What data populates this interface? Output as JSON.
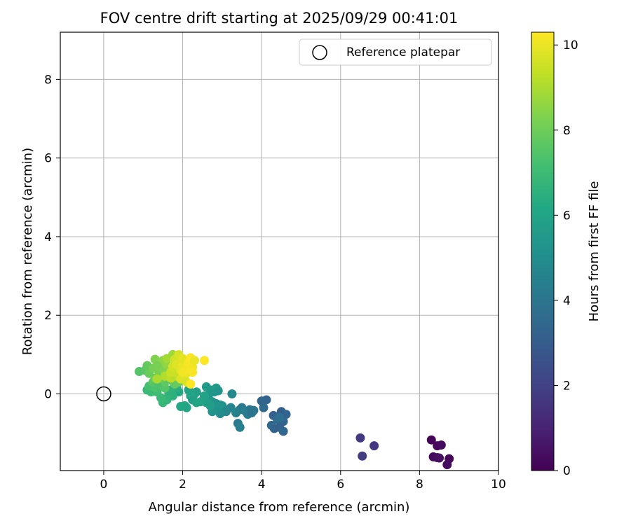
{
  "chart_data": {
    "type": "scatter",
    "title": "FOV centre drift starting at 2025/09/29 00:41:01",
    "xlabel": "Angular distance from reference (arcmin)",
    "ylabel": "Rotation from reference (arcmin)",
    "xlim": [
      -1.1,
      10
    ],
    "ylim": [
      -1.95,
      9.2
    ],
    "xticks": [
      0,
      2,
      4,
      6,
      8,
      10
    ],
    "yticks": [
      0,
      2,
      4,
      6,
      8
    ],
    "grid": true,
    "legend": {
      "placement": "top-right",
      "entries": [
        "Reference platepar"
      ]
    },
    "reference_point": {
      "x": 0,
      "y": 0,
      "label": "Reference platepar"
    },
    "colorbar": {
      "label": "Hours from first FF file",
      "colormap": "viridis",
      "range": [
        0,
        10.3
      ],
      "ticks": [
        0,
        2,
        4,
        6,
        8,
        10
      ]
    },
    "points": [
      {
        "x": 8.3,
        "y": -1.17,
        "c": 0.1
      },
      {
        "x": 8.45,
        "y": -1.32,
        "c": 0.2
      },
      {
        "x": 8.55,
        "y": -1.3,
        "c": 0.3
      },
      {
        "x": 8.35,
        "y": -1.6,
        "c": 0.25
      },
      {
        "x": 8.45,
        "y": -1.62,
        "c": 0.35
      },
      {
        "x": 8.5,
        "y": -1.63,
        "c": 0.4
      },
      {
        "x": 8.75,
        "y": -1.65,
        "c": 0.15
      },
      {
        "x": 8.7,
        "y": -1.8,
        "c": 0.3
      },
      {
        "x": 6.5,
        "y": -1.12,
        "c": 1.7
      },
      {
        "x": 6.85,
        "y": -1.32,
        "c": 1.6
      },
      {
        "x": 6.55,
        "y": -1.58,
        "c": 1.8
      },
      {
        "x": 4.0,
        "y": -0.18,
        "c": 3.4
      },
      {
        "x": 4.12,
        "y": -0.15,
        "c": 3.3
      },
      {
        "x": 4.05,
        "y": -0.35,
        "c": 3.5
      },
      {
        "x": 4.3,
        "y": -0.55,
        "c": 3.2
      },
      {
        "x": 4.5,
        "y": -0.45,
        "c": 3.1
      },
      {
        "x": 4.62,
        "y": -0.52,
        "c": 3.3
      },
      {
        "x": 4.55,
        "y": -0.7,
        "c": 3.4
      },
      {
        "x": 4.4,
        "y": -0.65,
        "c": 3.6
      },
      {
        "x": 4.25,
        "y": -0.8,
        "c": 3.5
      },
      {
        "x": 4.32,
        "y": -0.88,
        "c": 3.3
      },
      {
        "x": 4.45,
        "y": -0.85,
        "c": 3.2
      },
      {
        "x": 4.55,
        "y": -0.95,
        "c": 3.4
      },
      {
        "x": 4.45,
        "y": -0.6,
        "c": 3.7
      },
      {
        "x": 3.45,
        "y": -0.4,
        "c": 4.3
      },
      {
        "x": 3.5,
        "y": -0.35,
        "c": 4.2
      },
      {
        "x": 3.6,
        "y": -0.45,
        "c": 4.4
      },
      {
        "x": 3.7,
        "y": -0.4,
        "c": 4.1
      },
      {
        "x": 3.65,
        "y": -0.52,
        "c": 4.3
      },
      {
        "x": 3.8,
        "y": -0.42,
        "c": 4.0
      },
      {
        "x": 3.75,
        "y": -0.48,
        "c": 3.9
      },
      {
        "x": 3.35,
        "y": -0.48,
        "c": 4.5
      },
      {
        "x": 3.4,
        "y": -0.75,
        "c": 4.2
      },
      {
        "x": 3.45,
        "y": -0.85,
        "c": 4.4
      },
      {
        "x": 3.22,
        "y": -0.35,
        "c": 4.6
      },
      {
        "x": 3.25,
        "y": 0.0,
        "c": 4.8
      },
      {
        "x": 3.0,
        "y": -0.3,
        "c": 4.9
      },
      {
        "x": 3.1,
        "y": -0.45,
        "c": 4.7
      },
      {
        "x": 2.95,
        "y": -0.5,
        "c": 5.0
      },
      {
        "x": 2.85,
        "y": -0.38,
        "c": 5.1
      },
      {
        "x": 2.75,
        "y": -0.45,
        "c": 5.2
      },
      {
        "x": 2.6,
        "y": 0.18,
        "c": 5.6
      },
      {
        "x": 2.7,
        "y": 0.1,
        "c": 5.5
      },
      {
        "x": 2.8,
        "y": 0.05,
        "c": 5.4
      },
      {
        "x": 2.85,
        "y": 0.15,
        "c": 5.6
      },
      {
        "x": 2.9,
        "y": 0.08,
        "c": 5.3
      },
      {
        "x": 2.65,
        "y": -0.1,
        "c": 5.4
      },
      {
        "x": 2.75,
        "y": -0.2,
        "c": 5.5
      },
      {
        "x": 2.85,
        "y": -0.25,
        "c": 5.2
      },
      {
        "x": 2.95,
        "y": -0.28,
        "c": 5.3
      },
      {
        "x": 2.7,
        "y": -0.3,
        "c": 5.7
      },
      {
        "x": 2.6,
        "y": -0.22,
        "c": 5.8
      },
      {
        "x": 2.55,
        "y": -0.05,
        "c": 5.9
      },
      {
        "x": 2.45,
        "y": -0.2,
        "c": 5.9
      },
      {
        "x": 2.35,
        "y": 0.05,
        "c": 5.7
      },
      {
        "x": 2.3,
        "y": 0.0,
        "c": 5.8
      },
      {
        "x": 2.2,
        "y": -0.05,
        "c": 6.0
      },
      {
        "x": 2.15,
        "y": 0.1,
        "c": 5.9
      },
      {
        "x": 2.25,
        "y": -0.15,
        "c": 5.8
      },
      {
        "x": 2.35,
        "y": -0.22,
        "c": 6.0
      },
      {
        "x": 2.05,
        "y": -0.3,
        "c": 6.1
      },
      {
        "x": 1.95,
        "y": -0.32,
        "c": 6.2
      },
      {
        "x": 2.1,
        "y": -0.35,
        "c": 6.0
      },
      {
        "x": 1.9,
        "y": 0.05,
        "c": 6.2
      },
      {
        "x": 1.85,
        "y": 0.15,
        "c": 6.4
      },
      {
        "x": 1.75,
        "y": -0.05,
        "c": 6.5
      },
      {
        "x": 1.7,
        "y": 0.1,
        "c": 6.6
      },
      {
        "x": 1.65,
        "y": 0.0,
        "c": 6.6
      },
      {
        "x": 1.6,
        "y": -0.15,
        "c": 6.7
      },
      {
        "x": 1.5,
        "y": -0.22,
        "c": 6.8
      },
      {
        "x": 1.45,
        "y": -0.1,
        "c": 6.9
      },
      {
        "x": 1.35,
        "y": 0.05,
        "c": 7.1
      },
      {
        "x": 1.2,
        "y": 0.05,
        "c": 7.0
      },
      {
        "x": 1.1,
        "y": 0.1,
        "c": 6.9
      },
      {
        "x": 1.15,
        "y": 0.2,
        "c": 7.2
      },
      {
        "x": 1.3,
        "y": 0.15,
        "c": 7.3
      },
      {
        "x": 1.25,
        "y": 0.3,
        "c": 7.6
      },
      {
        "x": 1.4,
        "y": 0.25,
        "c": 7.4
      },
      {
        "x": 1.55,
        "y": 0.15,
        "c": 7.5
      },
      {
        "x": 1.55,
        "y": 0.3,
        "c": 7.7
      },
      {
        "x": 1.7,
        "y": 0.35,
        "c": 7.6
      },
      {
        "x": 1.8,
        "y": 0.25,
        "c": 7.8
      },
      {
        "x": 1.9,
        "y": 0.3,
        "c": 7.9
      },
      {
        "x": 0.9,
        "y": 0.57,
        "c": 7.5
      },
      {
        "x": 1.05,
        "y": 0.6,
        "c": 7.6
      },
      {
        "x": 1.1,
        "y": 0.72,
        "c": 7.8
      },
      {
        "x": 1.15,
        "y": 0.52,
        "c": 7.9
      },
      {
        "x": 1.3,
        "y": 0.88,
        "c": 8.3
      },
      {
        "x": 1.25,
        "y": 0.65,
        "c": 8.1
      },
      {
        "x": 1.4,
        "y": 0.55,
        "c": 8.2
      },
      {
        "x": 1.5,
        "y": 0.65,
        "c": 8.3
      },
      {
        "x": 1.5,
        "y": 0.85,
        "c": 8.5
      },
      {
        "x": 1.55,
        "y": 0.5,
        "c": 8.4
      },
      {
        "x": 1.6,
        "y": 0.75,
        "c": 8.6
      },
      {
        "x": 1.45,
        "y": 0.4,
        "c": 8.0
      },
      {
        "x": 1.65,
        "y": 0.48,
        "c": 8.7
      },
      {
        "x": 1.35,
        "y": 0.72,
        "c": 8.2
      },
      {
        "x": 1.3,
        "y": 0.4,
        "c": 8.0
      },
      {
        "x": 1.35,
        "y": 0.38,
        "c": 9.0
      },
      {
        "x": 1.55,
        "y": 0.45,
        "c": 9.1
      },
      {
        "x": 1.6,
        "y": 0.9,
        "c": 8.9
      },
      {
        "x": 1.75,
        "y": 1.0,
        "c": 8.8
      },
      {
        "x": 1.7,
        "y": 0.4,
        "c": 9.3
      },
      {
        "x": 1.8,
        "y": 0.45,
        "c": 9.2
      },
      {
        "x": 1.85,
        "y": 0.52,
        "c": 9.4
      },
      {
        "x": 1.7,
        "y": 0.55,
        "c": 9.5
      },
      {
        "x": 1.75,
        "y": 0.7,
        "c": 9.6
      },
      {
        "x": 1.8,
        "y": 0.88,
        "c": 9.6
      },
      {
        "x": 1.9,
        "y": 1.0,
        "c": 9.7
      },
      {
        "x": 1.85,
        "y": 0.75,
        "c": 9.8
      },
      {
        "x": 1.95,
        "y": 0.6,
        "c": 9.9
      },
      {
        "x": 2.0,
        "y": 0.75,
        "c": 10.0
      },
      {
        "x": 2.0,
        "y": 0.9,
        "c": 9.9
      },
      {
        "x": 2.1,
        "y": 0.65,
        "c": 10.1
      },
      {
        "x": 2.15,
        "y": 0.8,
        "c": 10.2
      },
      {
        "x": 2.2,
        "y": 0.92,
        "c": 10.3
      },
      {
        "x": 2.25,
        "y": 0.68,
        "c": 10.1
      },
      {
        "x": 2.3,
        "y": 0.85,
        "c": 10.0
      },
      {
        "x": 2.15,
        "y": 0.55,
        "c": 10.2
      },
      {
        "x": 2.05,
        "y": 0.45,
        "c": 10.0
      },
      {
        "x": 1.95,
        "y": 0.38,
        "c": 9.8
      },
      {
        "x": 2.1,
        "y": 0.3,
        "c": 9.7
      },
      {
        "x": 2.2,
        "y": 0.25,
        "c": 10.3
      },
      {
        "x": 2.55,
        "y": 0.85,
        "c": 10.3
      },
      {
        "x": 2.0,
        "y": 0.55,
        "c": 10.1
      },
      {
        "x": 2.25,
        "y": 0.55,
        "c": 10.2
      }
    ]
  }
}
